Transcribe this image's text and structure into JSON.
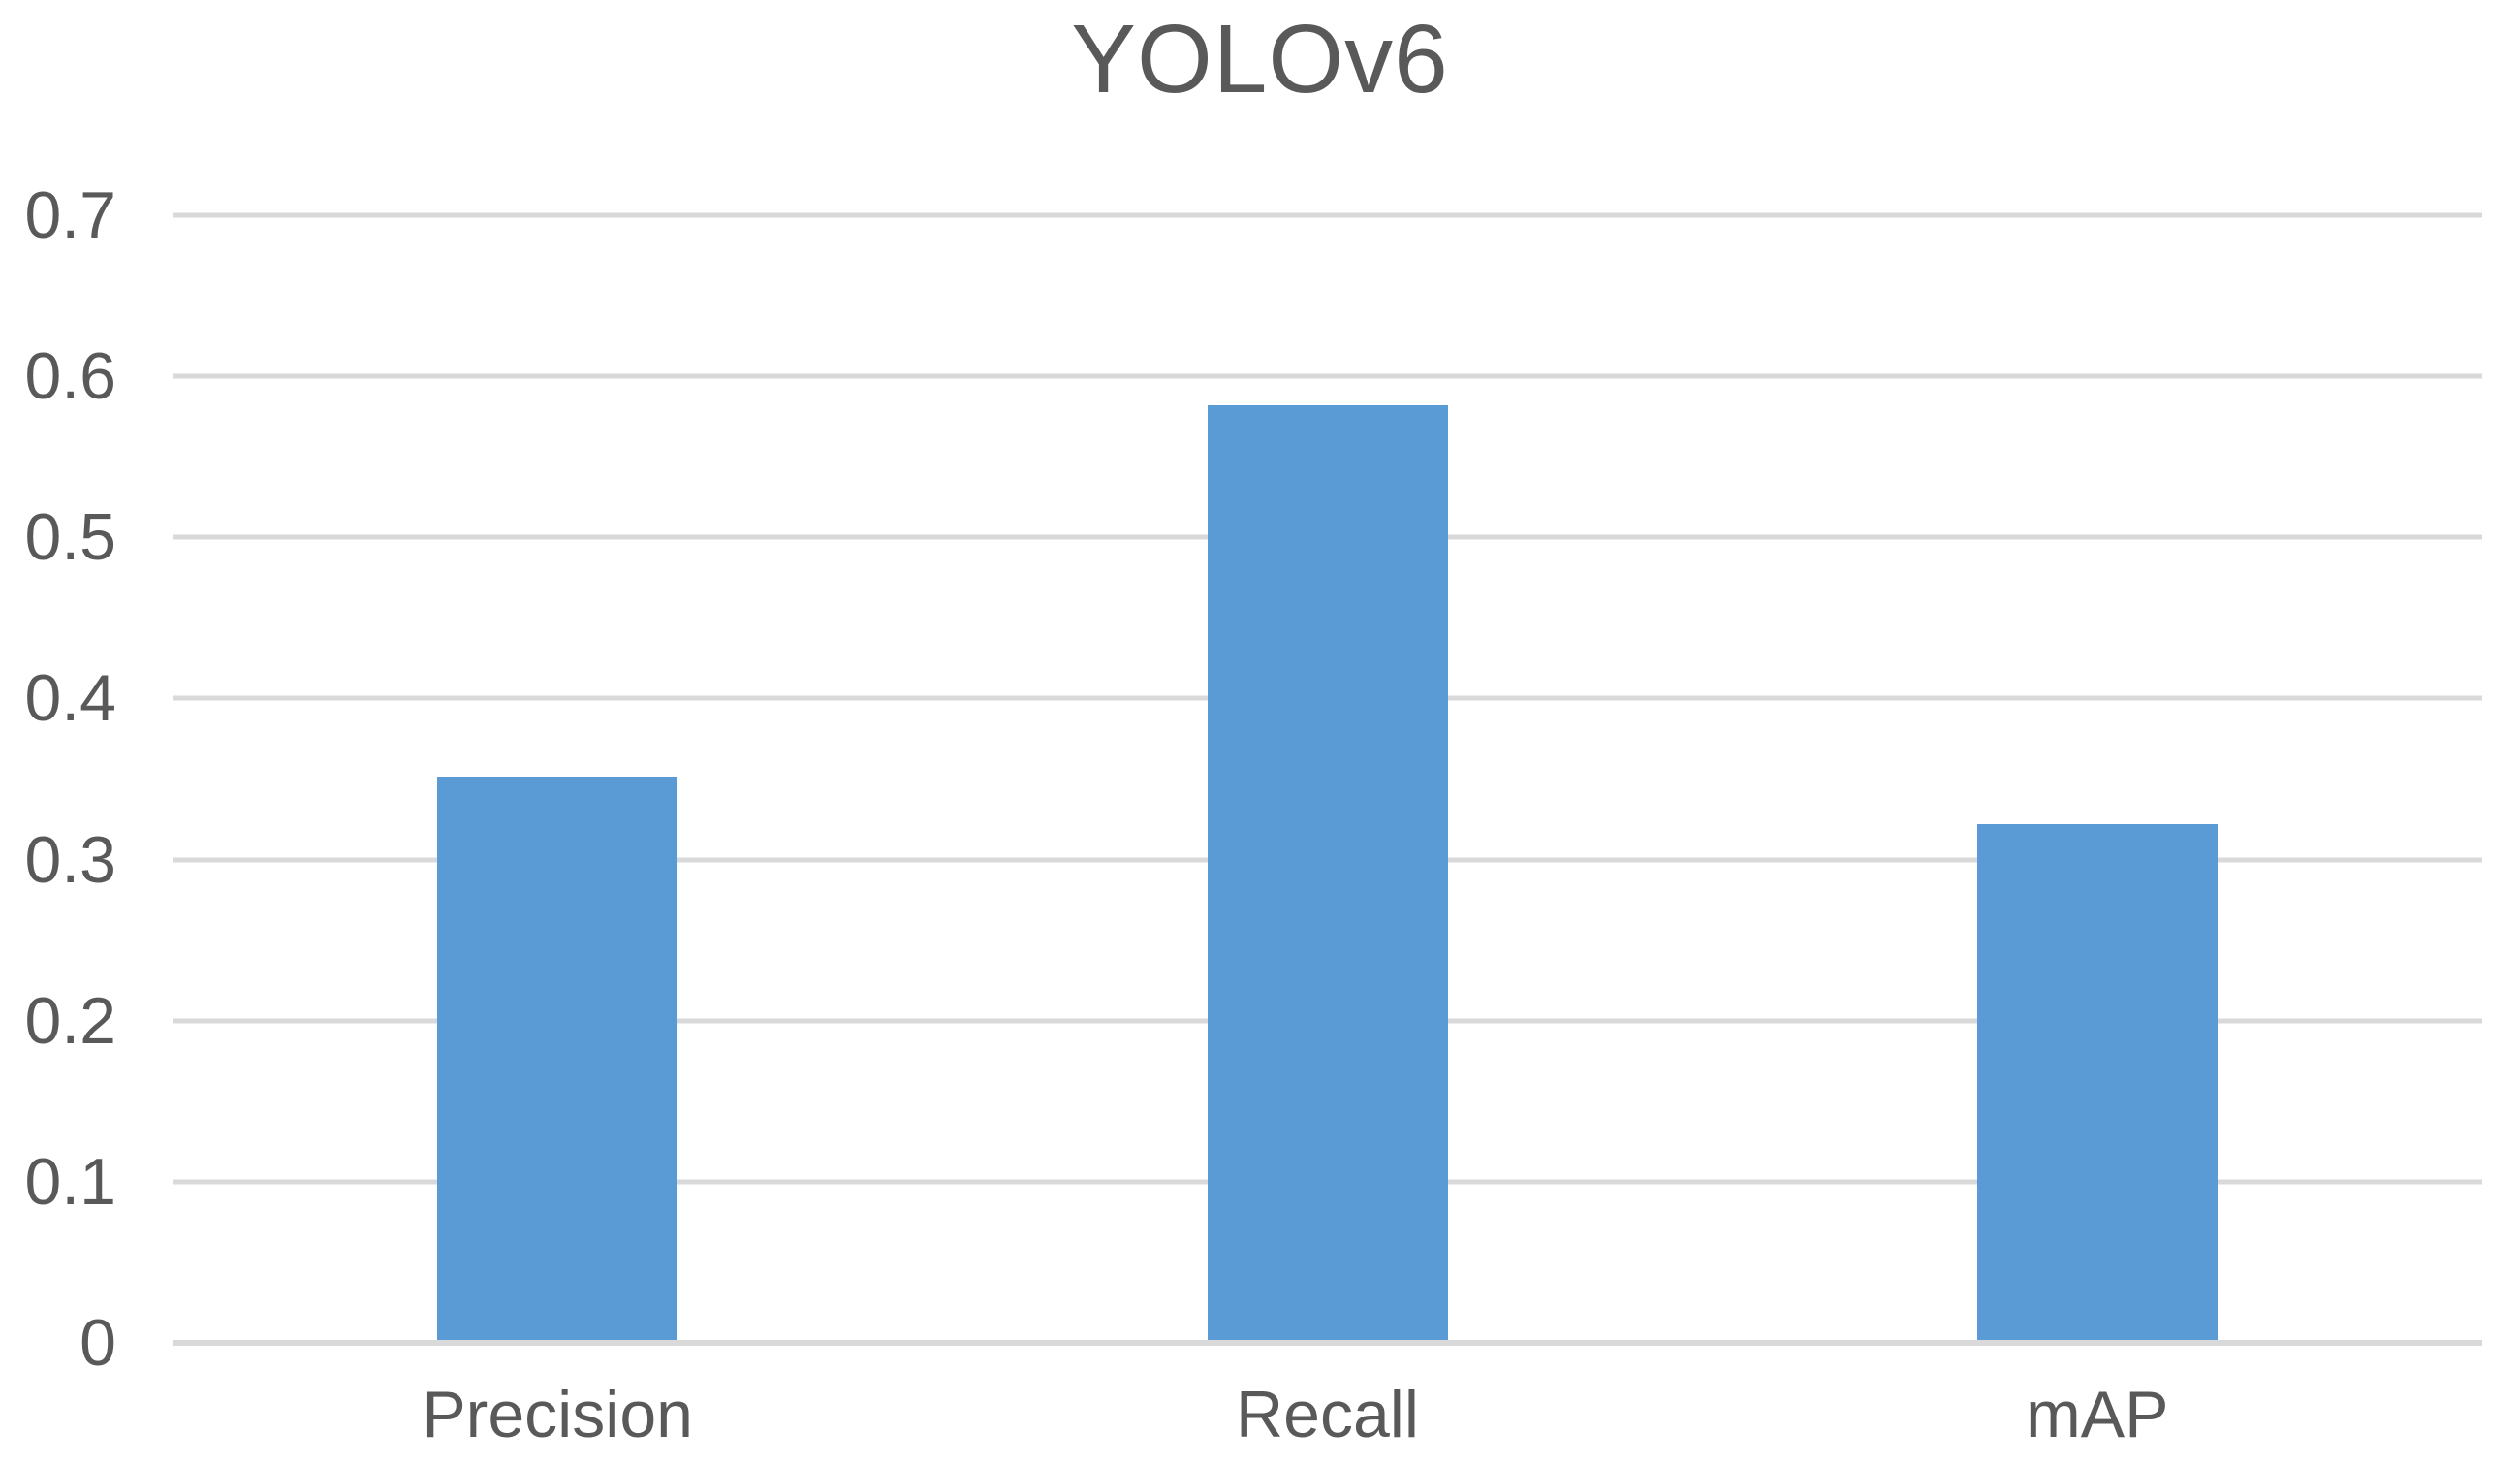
{
  "chart_data": {
    "type": "bar",
    "title": "YOLOv6",
    "categories": [
      "Precision",
      "Recall",
      "mAP"
    ],
    "values": [
      0.35,
      0.58,
      0.32
    ],
    "xlabel": "",
    "ylabel": "",
    "ylim": [
      0,
      0.7
    ],
    "yticks": [
      0,
      0.1,
      0.2,
      0.3,
      0.4,
      0.5,
      0.6,
      0.7
    ],
    "ytick_labels": [
      "0",
      "0.1",
      "0.2",
      "0.3",
      "0.4",
      "0.5",
      "0.6",
      "0.7"
    ],
    "grid": true,
    "legend": false,
    "colors": {
      "bar": "#5B9BD5",
      "gridline": "#D9D9D9",
      "axis_line": "#D9D9D9",
      "text": "#595959"
    }
  }
}
